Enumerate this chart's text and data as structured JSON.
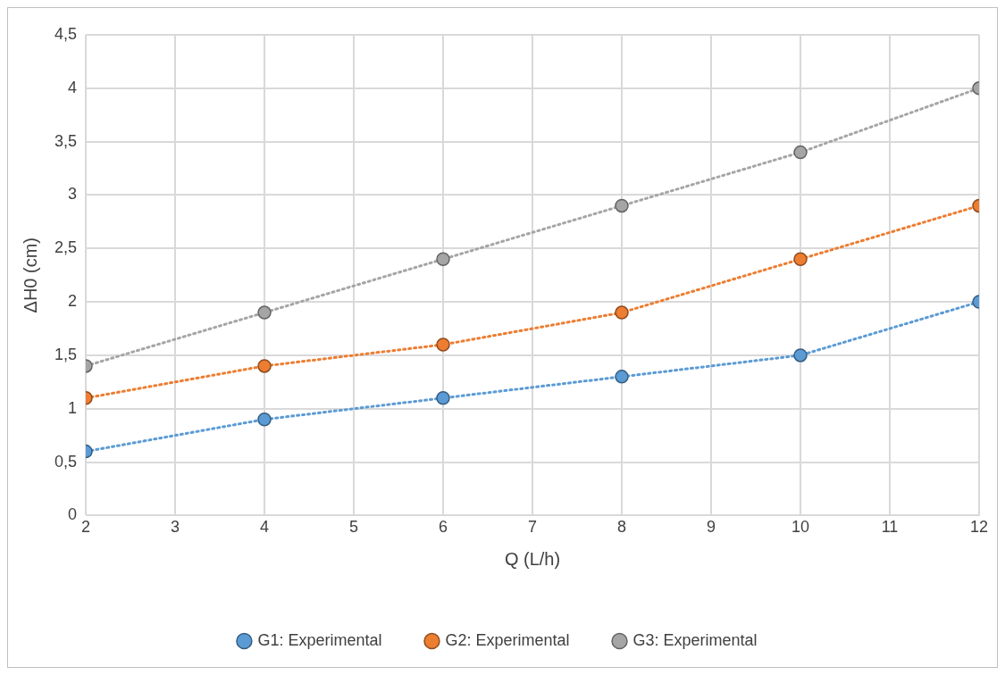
{
  "chart_data": {
    "type": "line",
    "xlabel": "Q (L/h)",
    "ylabel": "ΔH0 (cm)",
    "x": [
      2,
      4,
      6,
      8,
      10,
      12
    ],
    "series": [
      {
        "name": "G1: Experimental",
        "color": "#5b9bd5",
        "values": [
          0.6,
          0.9,
          1.1,
          1.3,
          1.5,
          2.0
        ]
      },
      {
        "name": "G2: Experimental",
        "color": "#ed7d31",
        "values": [
          1.1,
          1.4,
          1.6,
          1.9,
          2.4,
          2.9
        ]
      },
      {
        "name": "G3: Experimental",
        "color": "#a5a5a5",
        "values": [
          1.4,
          1.9,
          2.4,
          2.9,
          3.4,
          4.0
        ]
      }
    ],
    "xlim": [
      2,
      12
    ],
    "xticks": [
      2,
      3,
      4,
      5,
      6,
      7,
      8,
      9,
      10,
      11,
      12
    ],
    "ylim": [
      0,
      4.5
    ],
    "yticks": [
      0,
      {
        "value": 0.5,
        "label": "0,5"
      },
      1,
      {
        "value": 1.5,
        "label": "1,5"
      },
      2,
      {
        "value": 2.5,
        "label": "2,5"
      },
      3,
      {
        "value": 3.5,
        "label": "3,5"
      },
      4,
      {
        "value": 4.5,
        "label": "4,5"
      }
    ],
    "grid": true,
    "legend": "bottom",
    "marker": "circle",
    "line_style": "dotted"
  }
}
